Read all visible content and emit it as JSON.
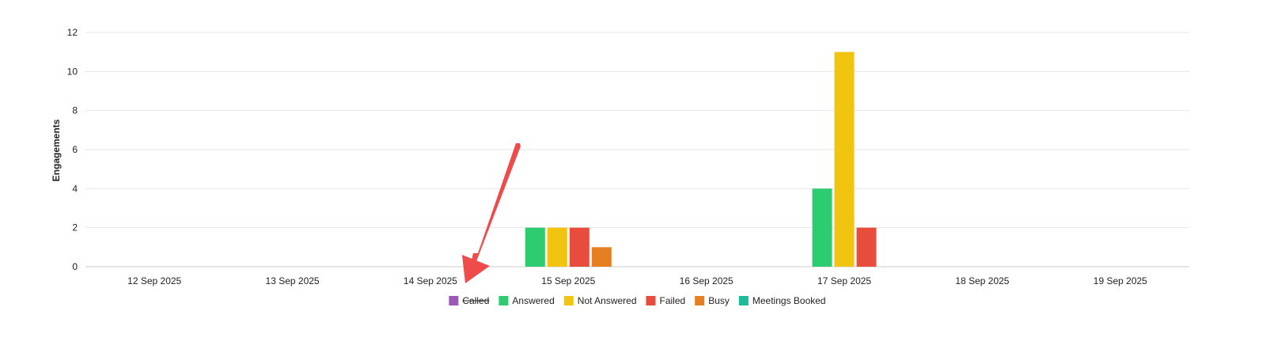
{
  "chart_data": {
    "type": "bar",
    "ylabel": "Engagements",
    "ylim": [
      0,
      12
    ],
    "yticks": [
      0,
      2,
      4,
      6,
      8,
      10,
      12
    ],
    "grid": true,
    "legend_position": "bottom-center",
    "categories": [
      "12 Sep 2025",
      "13 Sep 2025",
      "14 Sep 2025",
      "15 Sep 2025",
      "16 Sep 2025",
      "17 Sep 2025",
      "18 Sep 2025",
      "19 Sep 2025"
    ],
    "series": [
      {
        "name": "Called",
        "color": "#9b59b6",
        "hidden": true,
        "values": [
          0,
          0,
          0,
          0,
          0,
          0,
          0,
          0
        ]
      },
      {
        "name": "Answered",
        "color": "#2ecc71",
        "hidden": false,
        "values": [
          0,
          0,
          0,
          2,
          0,
          4,
          0,
          0
        ]
      },
      {
        "name": "Not Answered",
        "color": "#f1c40f",
        "hidden": false,
        "values": [
          0,
          0,
          0,
          2,
          0,
          11,
          0,
          0
        ]
      },
      {
        "name": "Failed",
        "color": "#e74c3c",
        "hidden": false,
        "values": [
          0,
          0,
          0,
          2,
          0,
          2,
          0,
          0
        ]
      },
      {
        "name": "Busy",
        "color": "#e67e22",
        "hidden": false,
        "values": [
          0,
          0,
          0,
          1,
          0,
          0,
          0,
          0
        ]
      },
      {
        "name": "Meetings Booked",
        "color": "#1abc9c",
        "hidden": false,
        "values": [
          0,
          0,
          0,
          0,
          0,
          0,
          0,
          0
        ]
      }
    ]
  },
  "annotation": {
    "arrow_color": "#ef4b4b"
  }
}
